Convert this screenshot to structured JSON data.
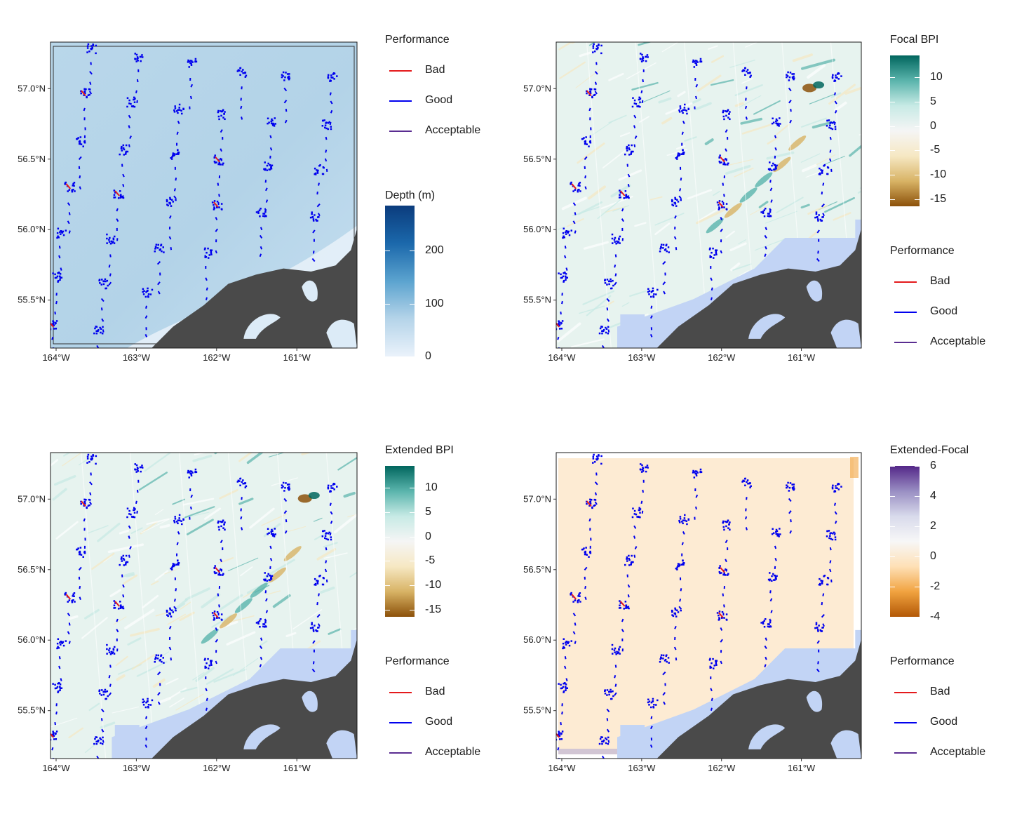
{
  "panels": [
    {
      "id": "depth",
      "theme": "depth",
      "coast_color": "#4a4a4a",
      "fill_ocean_gaps": false,
      "colorbar": {
        "title": "Depth (m)",
        "ticks": [
          "200",
          "100",
          "0"
        ],
        "values": [
          200,
          100,
          0
        ],
        "min": 0,
        "max": 285,
        "colors": [
          "#eaf2fb",
          "#b5d4e9",
          "#5ba3cf",
          "#1b68ab",
          "#0b3c7d"
        ]
      },
      "performance_legend": {
        "title": "Performance",
        "items": [
          {
            "label": "Bad",
            "color": "#e41a1c"
          },
          {
            "label": "Good",
            "color": "#0000ee"
          },
          {
            "label": "Acceptable",
            "color": "#5a2d91"
          }
        ]
      }
    },
    {
      "id": "focal",
      "theme": "bpi",
      "coast_color": "#4a4a4a",
      "fill_ocean_gaps": true,
      "colorbar": {
        "title": "Focal BPI",
        "ticks": [
          "10",
          "5",
          "0",
          "-5",
          "-10",
          "-15"
        ],
        "values": [
          10,
          5,
          0,
          -5,
          -10,
          -15
        ],
        "min": -16.5,
        "max": 14.5,
        "colors": [
          "#8c510a",
          "#d8b365",
          "#f6e8c3",
          "#f5f5f5",
          "#c7eae5",
          "#5ab4ac",
          "#01665e"
        ]
      },
      "performance_legend": {
        "title": "Performance",
        "items": [
          {
            "label": "Bad",
            "color": "#e41a1c"
          },
          {
            "label": "Good",
            "color": "#0000ee"
          },
          {
            "label": "Acceptable",
            "color": "#5a2d91"
          }
        ]
      }
    },
    {
      "id": "extended",
      "theme": "bpi",
      "coast_color": "#4a4a4a",
      "fill_ocean_gaps": true,
      "colorbar": {
        "title": "Extended BPI",
        "ticks": [
          "10",
          "5",
          "0",
          "-5",
          "-10",
          "-15"
        ],
        "values": [
          10,
          5,
          0,
          -5,
          -10,
          -15
        ],
        "min": -16.5,
        "max": 14.5,
        "colors": [
          "#8c510a",
          "#d8b365",
          "#f6e8c3",
          "#f5f5f5",
          "#c7eae5",
          "#5ab4ac",
          "#01665e"
        ]
      },
      "performance_legend": {
        "title": "Performance",
        "items": [
          {
            "label": "Bad",
            "color": "#e41a1c"
          },
          {
            "label": "Good",
            "color": "#0000ee"
          },
          {
            "label": "Acceptable",
            "color": "#5a2d91"
          }
        ]
      }
    },
    {
      "id": "difference",
      "theme": "diff",
      "coast_color": "#4a4a4a",
      "fill_ocean_gaps": true,
      "colorbar": {
        "title": "Extended-Focal",
        "ticks": [
          "6",
          "4",
          "2",
          "0",
          "-2",
          "-4"
        ],
        "values": [
          6,
          4,
          2,
          0,
          -2,
          -4
        ],
        "min": -4,
        "max": 6,
        "colors": [
          "#b35806",
          "#f1a340",
          "#fee0b6",
          "#f7f7f7",
          "#d8daeb",
          "#998ec3",
          "#542788"
        ]
      },
      "performance_legend": {
        "title": "Performance",
        "items": [
          {
            "label": "Bad",
            "color": "#e41a1c"
          },
          {
            "label": "Good",
            "color": "#0000ee"
          },
          {
            "label": "Acceptable",
            "color": "#5a2d91"
          }
        ]
      }
    }
  ],
  "axes": {
    "x_ticks": [
      {
        "label": "164°W",
        "value": -164
      },
      {
        "label": "163°W",
        "value": -163
      },
      {
        "label": "162°W",
        "value": -162
      },
      {
        "label": "161°W",
        "value": -161
      }
    ],
    "y_ticks": [
      {
        "label": "57.0°N",
        "value": 57.0
      },
      {
        "label": "56.5°N",
        "value": 56.5
      },
      {
        "label": "56.0°N",
        "value": 56.0
      },
      {
        "label": "55.5°N",
        "value": 55.5
      }
    ],
    "lon_range": [
      -164.07,
      -160.25
    ],
    "lat_range": [
      55.16,
      57.33
    ]
  },
  "stations": [
    {
      "lon": -163.57,
      "lat": 57.29,
      "perf": "Good"
    },
    {
      "lon": -162.99,
      "lat": 57.23,
      "perf": "Good"
    },
    {
      "lon": -162.32,
      "lat": 57.19,
      "perf": "Good"
    },
    {
      "lon": -161.69,
      "lat": 57.12,
      "perf": "Good"
    },
    {
      "lon": -161.14,
      "lat": 57.1,
      "perf": "Good"
    },
    {
      "lon": -160.57,
      "lat": 57.09,
      "perf": "Good"
    },
    {
      "lon": -163.65,
      "lat": 56.97,
      "perf": "Bad"
    },
    {
      "lon": -163.08,
      "lat": 56.91,
      "perf": "Good"
    },
    {
      "lon": -162.48,
      "lat": 56.86,
      "perf": "Good"
    },
    {
      "lon": -161.94,
      "lat": 56.82,
      "perf": "Good"
    },
    {
      "lon": -161.32,
      "lat": 56.77,
      "perf": "Good"
    },
    {
      "lon": -160.64,
      "lat": 56.75,
      "perf": "Good"
    },
    {
      "lon": -163.7,
      "lat": 56.63,
      "perf": "Good"
    },
    {
      "lon": -163.17,
      "lat": 56.57,
      "perf": "Good"
    },
    {
      "lon": -162.52,
      "lat": 56.54,
      "perf": "Good"
    },
    {
      "lon": -161.98,
      "lat": 56.5,
      "perf": "Bad"
    },
    {
      "lon": -161.38,
      "lat": 56.46,
      "perf": "Good"
    },
    {
      "lon": -160.73,
      "lat": 56.43,
      "perf": "Good"
    },
    {
      "lon": -163.84,
      "lat": 56.31,
      "perf": "Bad"
    },
    {
      "lon": -163.23,
      "lat": 56.26,
      "perf": "Bad"
    },
    {
      "lon": -162.58,
      "lat": 56.2,
      "perf": "Good"
    },
    {
      "lon": -162.0,
      "lat": 56.18,
      "perf": "Bad"
    },
    {
      "lon": -161.45,
      "lat": 56.13,
      "perf": "Good"
    },
    {
      "lon": -160.79,
      "lat": 56.1,
      "perf": "Good"
    },
    {
      "lon": -163.95,
      "lat": 55.98,
      "perf": "Good"
    },
    {
      "lon": -163.33,
      "lat": 55.94,
      "perf": "Good"
    },
    {
      "lon": -162.72,
      "lat": 55.88,
      "perf": "Good"
    },
    {
      "lon": -162.13,
      "lat": 55.84,
      "perf": "Good"
    },
    {
      "lon": -164.0,
      "lat": 55.67,
      "perf": "Good"
    },
    {
      "lon": -163.42,
      "lat": 55.62,
      "perf": "Good"
    },
    {
      "lon": -162.87,
      "lat": 55.56,
      "perf": "Good"
    },
    {
      "lon": -164.05,
      "lat": 55.33,
      "perf": "Bad"
    },
    {
      "lon": -163.48,
      "lat": 55.29,
      "perf": "Good"
    }
  ]
}
